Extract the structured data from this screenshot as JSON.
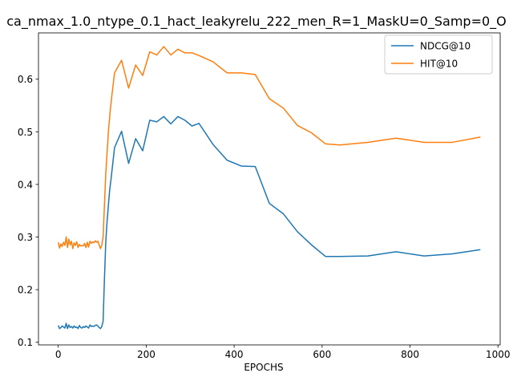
{
  "chart_data": {
    "type": "line",
    "title": "ca_nmax_1.0_ntype_0.1_hact_leakyrelu_222_men_R=1_MaskU=0_Samp=0_O",
    "xlabel": "EPOCHS",
    "ylabel": "",
    "xlim": [
      -45,
      1005
    ],
    "ylim": [
      0.095,
      0.688
    ],
    "xticks": [
      0,
      200,
      400,
      600,
      800,
      1000
    ],
    "yticks": [
      0.1,
      0.2,
      0.3,
      0.4,
      0.5,
      0.6
    ],
    "xtick_labels": [
      "0",
      "200",
      "400",
      "600",
      "800",
      "1000"
    ],
    "ytick_labels": [
      "0.1",
      "0.2",
      "0.3",
      "0.4",
      "0.5",
      "0.6"
    ],
    "grid": false,
    "legend_position": "top-right",
    "series": [
      {
        "name": "NDCG@10",
        "color": "#1f77b4",
        "x": [
          0,
          3,
          6,
          9,
          12,
          15,
          18,
          21,
          24,
          27,
          30,
          33,
          36,
          39,
          42,
          45,
          48,
          51,
          54,
          57,
          60,
          63,
          66,
          69,
          72,
          75,
          78,
          81,
          84,
          87,
          90,
          93,
          96,
          99,
          102,
          105,
          108,
          111,
          114,
          117,
          120,
          128,
          144,
          160,
          176,
          192,
          208,
          224,
          240,
          256,
          272,
          288,
          304,
          320,
          352,
          384,
          416,
          448,
          480,
          512,
          544,
          576,
          608,
          640,
          704,
          768,
          832,
          896,
          960
        ],
        "y": [
          0.132,
          0.126,
          0.128,
          0.131,
          0.129,
          0.127,
          0.136,
          0.126,
          0.133,
          0.128,
          0.13,
          0.127,
          0.131,
          0.128,
          0.129,
          0.126,
          0.132,
          0.128,
          0.127,
          0.13,
          0.128,
          0.131,
          0.129,
          0.127,
          0.133,
          0.13,
          0.131,
          0.13,
          0.132,
          0.133,
          0.131,
          0.128,
          0.126,
          0.13,
          0.14,
          0.22,
          0.29,
          0.33,
          0.36,
          0.39,
          0.41,
          0.47,
          0.501,
          0.44,
          0.487,
          0.464,
          0.522,
          0.519,
          0.529,
          0.515,
          0.529,
          0.522,
          0.511,
          0.516,
          0.476,
          0.446,
          0.435,
          0.434,
          0.364,
          0.344,
          0.31,
          0.285,
          0.263,
          0.263,
          0.264,
          0.272,
          0.264,
          0.268,
          0.276
        ]
      },
      {
        "name": "HIT@10",
        "color": "#ff7f0e",
        "x": [
          0,
          3,
          6,
          9,
          12,
          15,
          18,
          21,
          24,
          27,
          30,
          33,
          36,
          39,
          42,
          45,
          48,
          51,
          54,
          57,
          60,
          63,
          66,
          69,
          72,
          75,
          78,
          81,
          84,
          87,
          90,
          93,
          96,
          99,
          102,
          105,
          108,
          111,
          114,
          117,
          120,
          128,
          144,
          160,
          176,
          192,
          208,
          224,
          240,
          256,
          272,
          288,
          304,
          320,
          352,
          384,
          416,
          448,
          480,
          512,
          544,
          576,
          608,
          640,
          704,
          768,
          832,
          896,
          960
        ],
        "y": [
          0.29,
          0.279,
          0.287,
          0.282,
          0.29,
          0.284,
          0.3,
          0.28,
          0.296,
          0.285,
          0.292,
          0.278,
          0.289,
          0.284,
          0.291,
          0.28,
          0.286,
          0.283,
          0.284,
          0.283,
          0.288,
          0.28,
          0.29,
          0.281,
          0.292,
          0.288,
          0.291,
          0.289,
          0.293,
          0.29,
          0.292,
          0.285,
          0.278,
          0.285,
          0.3,
          0.36,
          0.42,
          0.46,
          0.5,
          0.53,
          0.555,
          0.612,
          0.636,
          0.583,
          0.627,
          0.607,
          0.652,
          0.646,
          0.662,
          0.646,
          0.657,
          0.65,
          0.65,
          0.645,
          0.633,
          0.612,
          0.612,
          0.609,
          0.563,
          0.545,
          0.512,
          0.498,
          0.477,
          0.475,
          0.48,
          0.488,
          0.48,
          0.48,
          0.49
        ]
      }
    ]
  }
}
